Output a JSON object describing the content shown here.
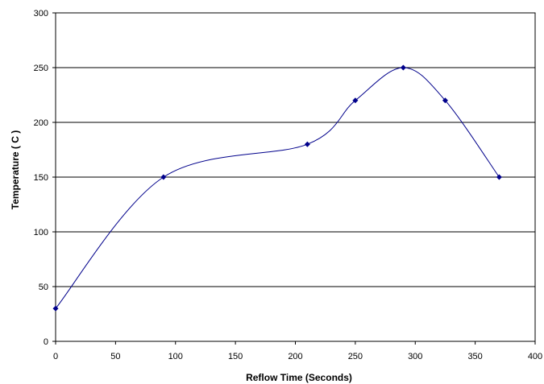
{
  "chart_data": {
    "type": "line",
    "title": "",
    "xlabel": "Reflow Time (Seconds)",
    "ylabel": "Temperature ( C )",
    "x": [
      0,
      90,
      210,
      250,
      290,
      325,
      370
    ],
    "series": [
      {
        "values": [
          30,
          150,
          180,
          220,
          250,
          220,
          150
        ],
        "color": "#00008B"
      }
    ],
    "xlim": [
      0,
      400
    ],
    "ylim": [
      0,
      300
    ],
    "x_ticks": [
      "0",
      "50",
      "100",
      "150",
      "200",
      "250",
      "300",
      "350",
      "400"
    ],
    "y_ticks": [
      "0",
      "50",
      "100",
      "150",
      "200",
      "250",
      "300"
    ],
    "grid": "horizontal",
    "legend": "none",
    "line_style": "smoothed",
    "marker": "diamond"
  }
}
